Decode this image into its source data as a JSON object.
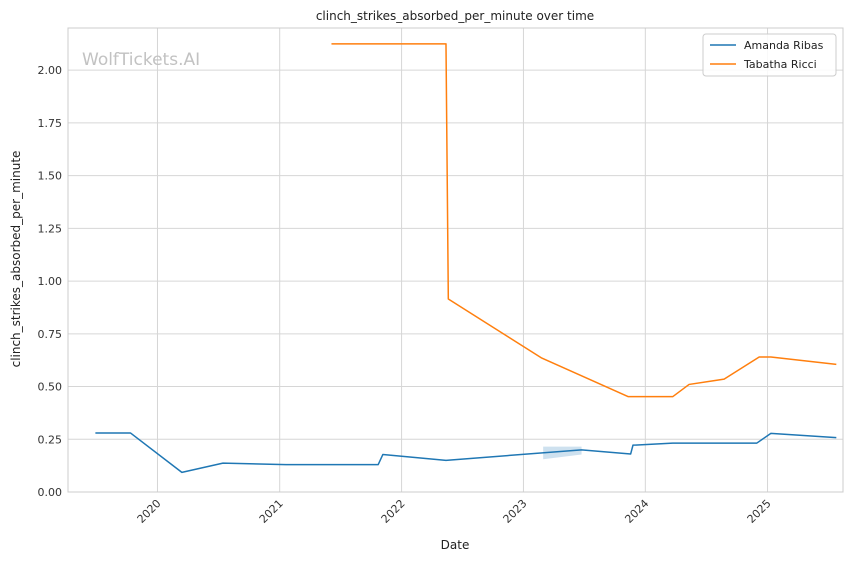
{
  "chart_data": {
    "type": "line",
    "title": "clinch_strikes_absorbed_per_minute over time",
    "xlabel": "Date",
    "ylabel": "clinch_strikes_absorbed_per_minute",
    "watermark": "WolfTickets.AI",
    "xlim": [
      "2019-04-08",
      "2025-08-15"
    ],
    "ylim": [
      0,
      2.2
    ],
    "x_ticks": [
      "2020-01-01",
      "2021-01-01",
      "2022-01-01",
      "2023-01-01",
      "2024-01-01",
      "2025-01-01"
    ],
    "x_tick_labels": [
      "2020",
      "2021",
      "2022",
      "2023",
      "2024",
      "2025"
    ],
    "y_ticks": [
      0,
      0.25,
      0.5,
      0.75,
      1.0,
      1.25,
      1.5,
      1.75,
      2.0
    ],
    "y_tick_labels": [
      "0.00",
      "0.25",
      "0.50",
      "0.75",
      "1.00",
      "1.25",
      "1.50",
      "1.75",
      "2.00"
    ],
    "grid": true,
    "legend": "top-right",
    "series": [
      {
        "name": "Amanda Ribas",
        "color": "#1f77b4",
        "points": [
          [
            "2019-06-29",
            0.28
          ],
          [
            "2019-10-12",
            0.28
          ],
          [
            "2020-03-14",
            0.093
          ],
          [
            "2020-07-15",
            0.137
          ],
          [
            "2021-01-20",
            0.13
          ],
          [
            "2021-10-23",
            0.13
          ],
          [
            "2021-11-06",
            0.178
          ],
          [
            "2022-05-14",
            0.15
          ],
          [
            "2023-06-24",
            0.2
          ],
          [
            "2023-11-18",
            0.18
          ],
          [
            "2023-11-25",
            0.222
          ],
          [
            "2024-03-23",
            0.232
          ],
          [
            "2024-11-30",
            0.232
          ],
          [
            "2025-01-11",
            0.278
          ],
          [
            "2025-07-26",
            0.258
          ]
        ],
        "band": {
          "x": [
            "2023-03-01",
            "2023-06-24"
          ],
          "upper": [
            0.215,
            0.215
          ],
          "lower": [
            0.155,
            0.178
          ]
        }
      },
      {
        "name": "Tabatha Ricci",
        "color": "#ff7f0e",
        "points": [
          [
            "2021-06-05",
            2.125
          ],
          [
            "2022-05-14",
            2.125
          ],
          [
            "2022-05-21",
            0.915
          ],
          [
            "2023-02-25",
            0.635
          ],
          [
            "2023-11-11",
            0.452
          ],
          [
            "2024-03-23",
            0.452
          ],
          [
            "2024-05-11",
            0.51
          ],
          [
            "2024-08-24",
            0.535
          ],
          [
            "2024-12-07",
            0.64
          ],
          [
            "2025-01-11",
            0.64
          ],
          [
            "2025-07-26",
            0.605
          ]
        ]
      }
    ]
  }
}
